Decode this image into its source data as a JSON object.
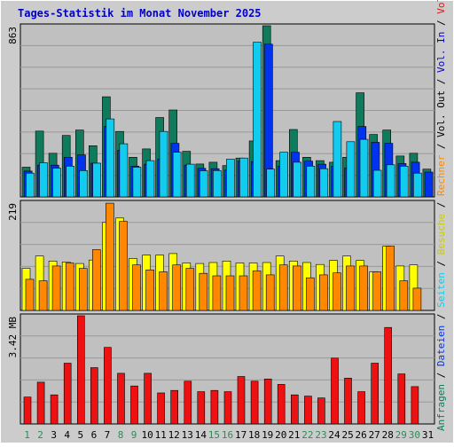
{
  "title": "Tages-Statistik im Monat November 2025",
  "colors": {
    "frame_bg": "#cccccc",
    "plot_bg": "#c0c0c0",
    "grid": "#999999",
    "title": "#0000cc",
    "day_weekday": "#000000",
    "day_weekend": "#2e8b57",
    "hits": "#107a5c",
    "files": "#0033ee",
    "pages": "#11ccee",
    "visits": "#ffff00",
    "sites": "#ff8800",
    "kbytes": "#ee1111"
  },
  "side_labels": [
    {
      "text": "Anfragen",
      "color": "#107a5c"
    },
    {
      "text": " / ",
      "color": "#000000"
    },
    {
      "text": "Dateien",
      "color": "#0033ee"
    },
    {
      "text": " / ",
      "color": "#000000"
    },
    {
      "text": "Seiten",
      "color": "#11ccee"
    },
    {
      "text": " / ",
      "color": "#000000"
    },
    {
      "text": "Besuche",
      "color": "#cccc00"
    },
    {
      "text": " / ",
      "color": "#000000"
    },
    {
      "text": "Rechner",
      "color": "#ff8800"
    },
    {
      "text": " / ",
      "color": "#000000"
    },
    {
      "text": "Vol. Out",
      "color": "#000000"
    },
    {
      "text": " / ",
      "color": "#000000"
    },
    {
      "text": "Vol. In",
      "color": "#0000cc"
    },
    {
      "text": " / ",
      "color": "#000000"
    },
    {
      "text": "Volumen",
      "color": "#ee1111"
    }
  ],
  "chart_data": {
    "type": "bar",
    "title": "Tages-Statistik im Monat November 2025",
    "days": [
      "1",
      "2",
      "3",
      "4",
      "5",
      "6",
      "7",
      "8",
      "9",
      "10",
      "11",
      "12",
      "13",
      "14",
      "15",
      "16",
      "17",
      "18",
      "19",
      "20",
      "21",
      "22",
      "23",
      "24",
      "25",
      "26",
      "27",
      "28",
      "29",
      "30",
      "31"
    ],
    "weekend_days": [
      "1",
      "2",
      "8",
      "9",
      "15",
      "16",
      "22",
      "23",
      "29",
      "30"
    ],
    "panels": [
      {
        "name": "requests",
        "max_label": "863",
        "ymax": 863,
        "series": [
          {
            "name": "Anfragen",
            "key": "hits",
            "values": [
              150,
              332,
              220,
              310,
              337,
              258,
              505,
              330,
              200,
              242,
              400,
              438,
              230,
              166,
              175,
              158,
              196,
              282,
              863,
              183,
              340,
              200,
              183,
              175,
              200,
              525,
              315,
              337,
              206,
              220,
              140
            ]
          },
          {
            "name": "Dateien",
            "key": "files",
            "values": [
              130,
              160,
              160,
              200,
              212,
              170,
              355,
              235,
              155,
              165,
              190,
              270,
              160,
              144,
              142,
              135,
              180,
              178,
              770,
              155,
              225,
              180,
              165,
              155,
              145,
              355,
              275,
              270,
              168,
              175,
              125
            ]
          },
          {
            "name": "Seiten",
            "key": "pages",
            "values": [
              120,
              172,
              145,
              155,
              133,
              170,
              393,
              268,
              150,
              183,
              330,
              225,
              165,
              132,
              133,
              190,
              196,
              780,
              140,
              225,
              175,
              155,
              142,
              380,
              278,
              290,
              134,
              162,
              155,
              120,
              0
            ]
          }
        ]
      },
      {
        "name": "visits",
        "max_label": "219",
        "ymax": 219,
        "series": [
          {
            "name": "Besuche",
            "key": "visits",
            "values": [
              85,
              110,
              100,
              98,
              95,
              102,
              178,
              187,
              105,
              112,
              112,
              115,
              96,
              95,
              97,
              100,
              96,
              96,
              97,
              110,
              100,
              97,
              93,
              101,
              110,
              101,
              78,
              130,
              90,
              92,
              0
            ]
          },
          {
            "name": "Rechner",
            "key": "sites",
            "values": [
              63,
              60,
              90,
              96,
              85,
              123,
              217,
              180,
              92,
              82,
              78,
              92,
              85,
              75,
              70,
              70,
              70,
              80,
              72,
              92,
              90,
              66,
              72,
              76,
              90,
              90,
              78,
              130,
              60,
              45,
              0
            ]
          }
        ]
      },
      {
        "name": "volume",
        "max_label": "3.42 MB",
        "ymax": 3.42,
        "series": [
          {
            "name": "Volumen",
            "key": "kbytes",
            "values": [
              0.85,
              1.32,
              0.92,
              1.92,
              3.42,
              1.78,
              2.42,
              1.6,
              1.2,
              1.6,
              0.98,
              1.06,
              1.35,
              1.02,
              1.06,
              1.02,
              1.5,
              1.35,
              1.42,
              1.25,
              0.92,
              0.88,
              0.82,
              2.08,
              1.45,
              1.02,
              1.92,
              3.05,
              1.58,
              1.18,
              0
            ]
          }
        ]
      }
    ]
  }
}
